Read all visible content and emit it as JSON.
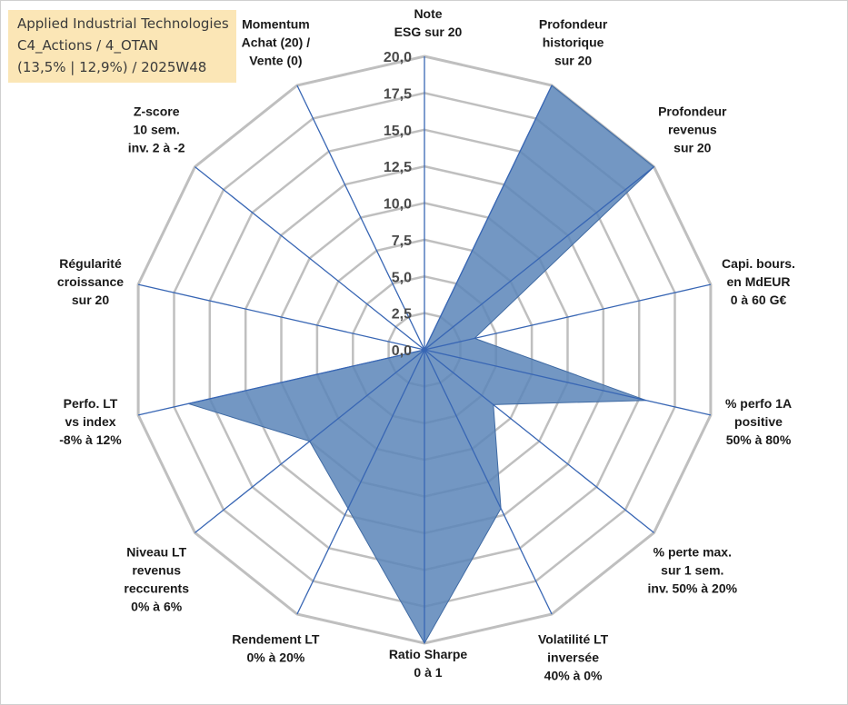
{
  "header": {
    "line1": "Applied Industrial Technologies",
    "line2": "C4_Actions / 4_OTAN",
    "line3": "(13,5% | 12,9%) / 2025W48"
  },
  "chart_data": {
    "type": "radar",
    "rmin": 0,
    "rmax": 20,
    "ticks": [
      "0,0",
      "2,5",
      "5,0",
      "7,5",
      "10,0",
      "12,5",
      "15,0",
      "17,5",
      "20,0"
    ],
    "tick_values": [
      0,
      2.5,
      5,
      7.5,
      10,
      12.5,
      15,
      17.5,
      20
    ],
    "axes": [
      {
        "label": [
          "Note",
          "ESG sur 20"
        ],
        "value": 0
      },
      {
        "label": [
          "Profondeur",
          "historique",
          "sur 20"
        ],
        "value": 20
      },
      {
        "label": [
          "Profondeur",
          "revenus",
          "sur 20"
        ],
        "value": 20
      },
      {
        "label": [
          "Capi. bours.",
          "en MdEUR",
          "0 à 60 G€"
        ],
        "value": 3.5
      },
      {
        "label": [
          "% perfo 1A",
          "positive",
          "50% à 80%"
        ],
        "value": 15.5
      },
      {
        "label": [
          "% perte max.",
          "sur 1 sem.",
          "inv. 50% à 20%"
        ],
        "value": 6
      },
      {
        "label": [
          "Volatilité LT",
          "inversée",
          "40% à 0%"
        ],
        "value": 12
      },
      {
        "label": [
          "Ratio Sharpe",
          "0 à 1"
        ],
        "value": 20
      },
      {
        "label": [
          "Rendement LT",
          "0% à 20%"
        ],
        "value": 12
      },
      {
        "label": [
          "Niveau LT",
          "revenus",
          "reccurents",
          "0% à 6%"
        ],
        "value": 10
      },
      {
        "label": [
          "Perfo. LT",
          "vs index",
          "-8% à 12%"
        ],
        "value": 16.5
      },
      {
        "label": [
          "Régularité",
          "croissance",
          "sur 20"
        ],
        "value": 0
      },
      {
        "label": [
          "Z-score",
          "10 sem.",
          "inv. 2 à -2"
        ],
        "value": 0
      },
      {
        "label": [
          "Momentum",
          "Achat (20) /",
          "Vente (0)"
        ],
        "value": 0
      }
    ],
    "colors": {
      "fill": "#5b85b8",
      "stroke": "#3f6aa3",
      "grid": "#bfbfbf",
      "spoke": "#3866b4"
    }
  }
}
